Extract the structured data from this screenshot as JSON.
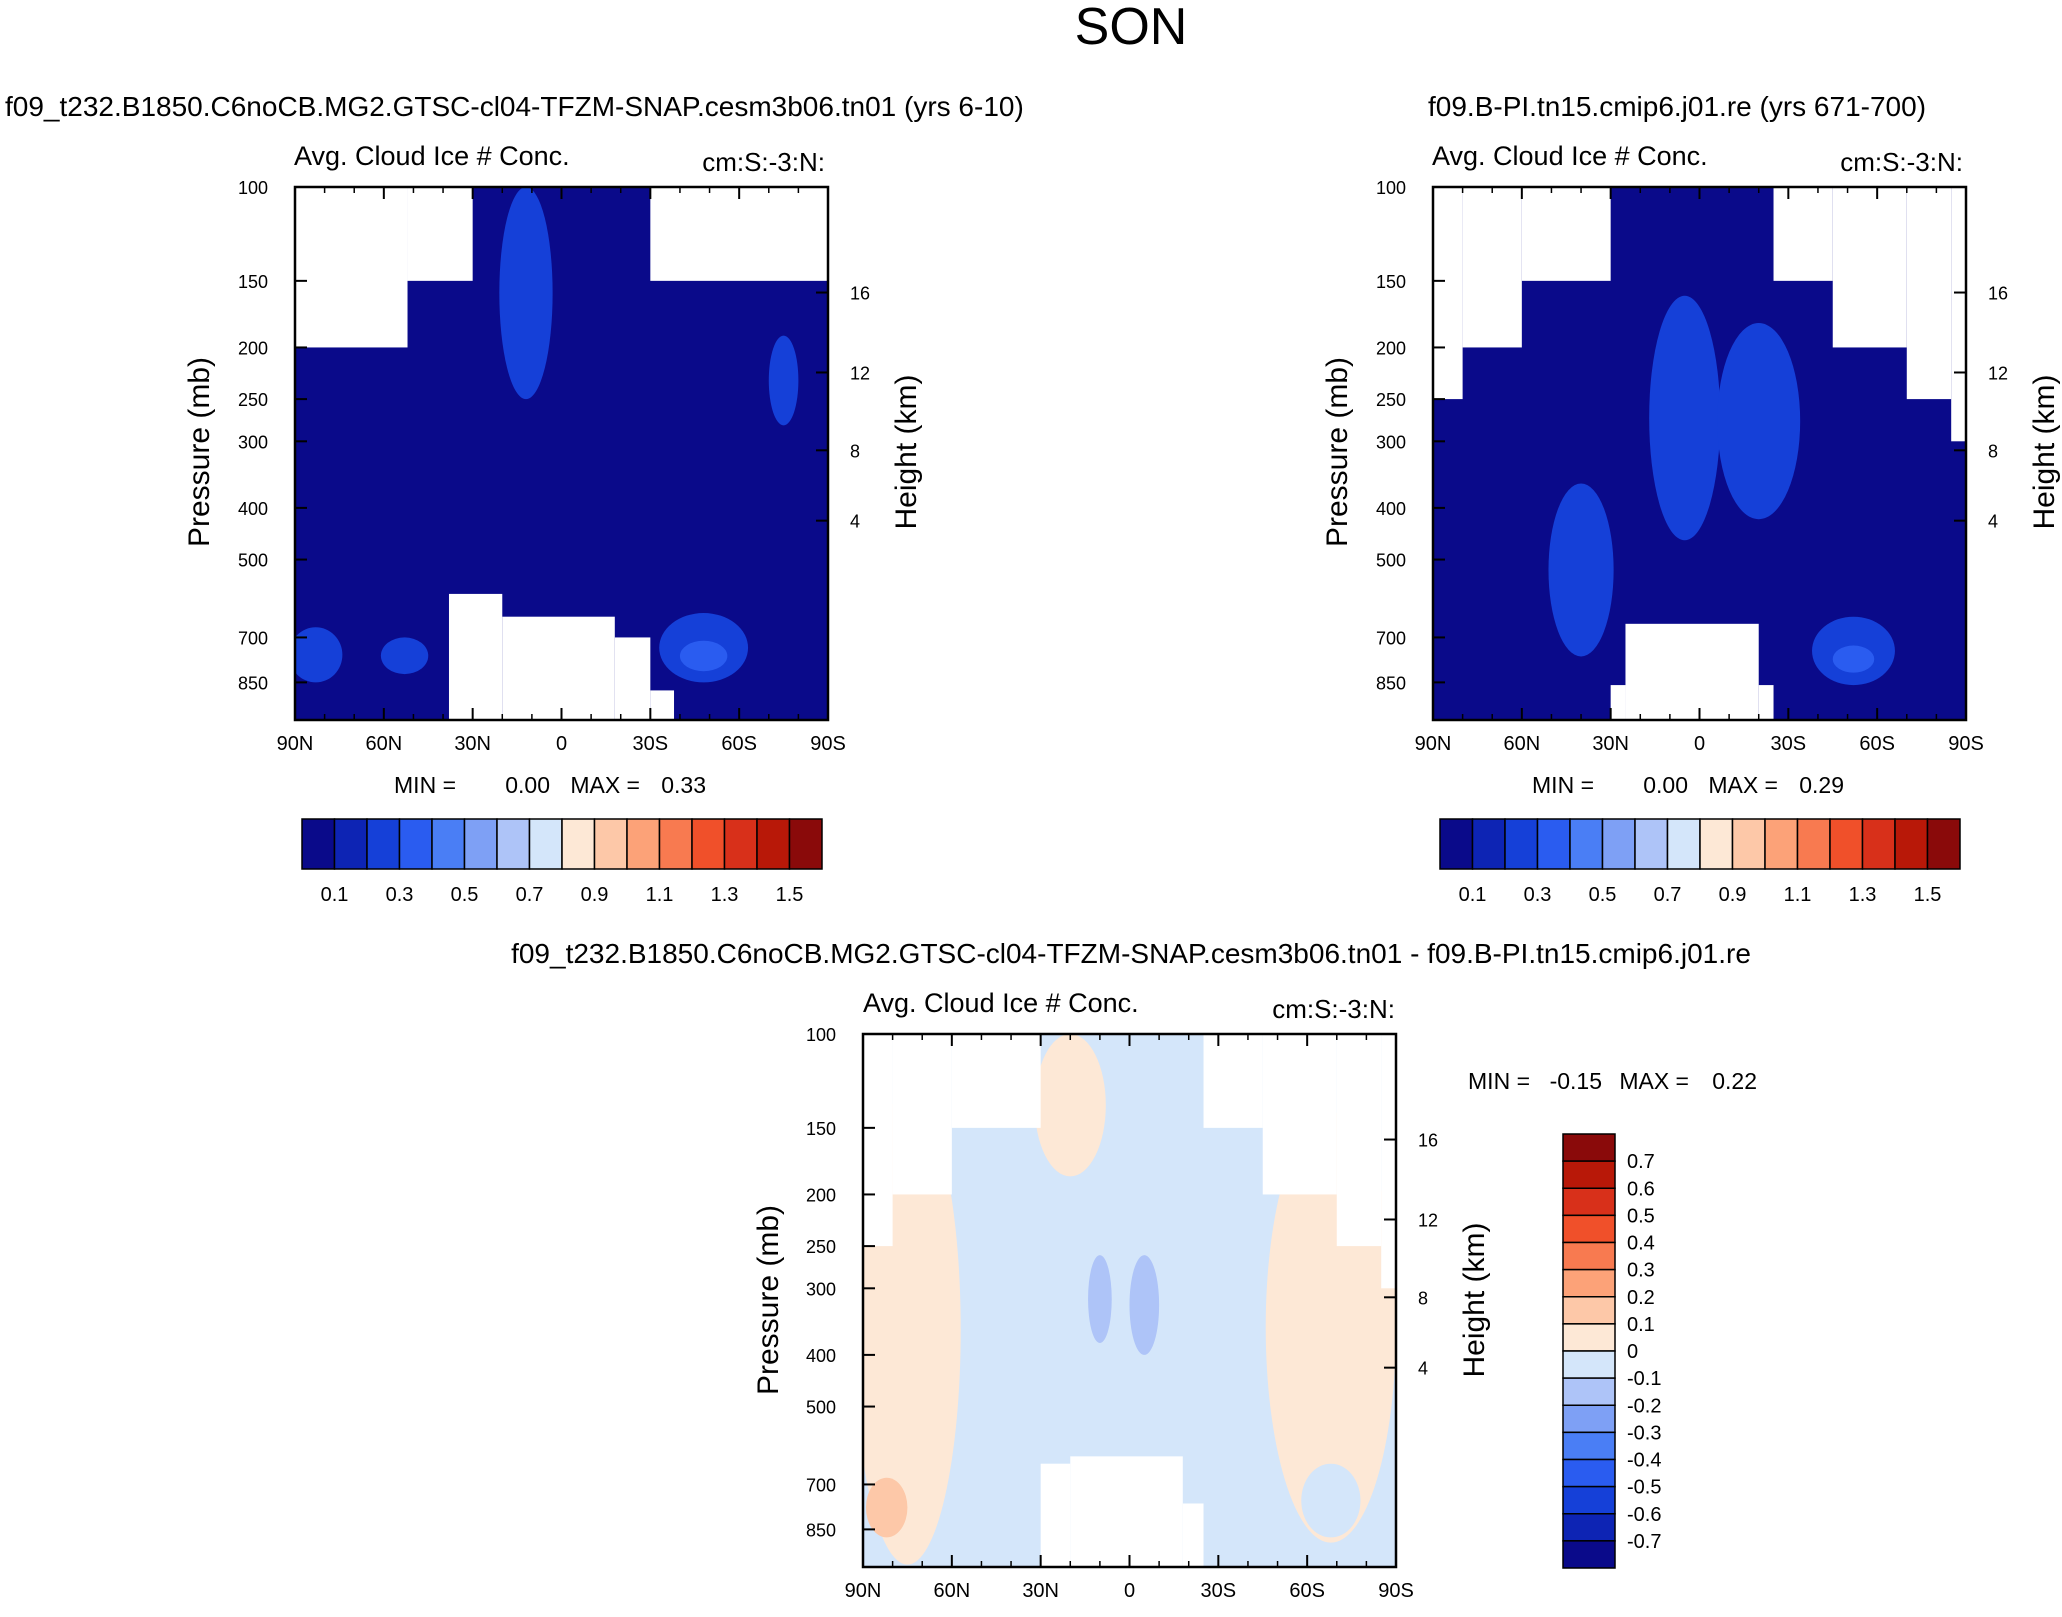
{
  "page_title": "SON",
  "palette_abs": [
    "#0a0a8a",
    "#0d24b4",
    "#1540d8",
    "#2a5cf0",
    "#4a7ef5",
    "#7ea0f5",
    "#aec4f8",
    "#d4e6fa",
    "#fde8d6",
    "#fdc8a8",
    "#fca278",
    "#f87a50",
    "#f0502a",
    "#d8301a",
    "#b81808",
    "#8a0a0a"
  ],
  "palette_diff": [
    "#0a0a8a",
    "#0d24b4",
    "#1540d8",
    "#2a5cf0",
    "#4a7ef5",
    "#7ea0f5",
    "#aec4f8",
    "#d4e6fa",
    "#fde8d6",
    "#fdc8a8",
    "#fca278",
    "#f87a50",
    "#f0502a",
    "#d8301a",
    "#b81808",
    "#8a0a0a"
  ],
  "chart_data": [
    {
      "id": "panel_a",
      "type": "heatmap",
      "title": "f09_t232.B1850.C6noCB.MG2.GTSC-cl04-TFZM-SNAP.cesm3b06.tn01 (yrs 6-10)",
      "subtitle_left": "Avg. Cloud Ice # Conc.",
      "subtitle_right": "cm:S:-3:N:",
      "ylabel": "Pressure (mb)",
      "ylabel_right": "Height (km)",
      "xlim": [
        90,
        -90
      ],
      "ylim_pressure": [
        100,
        1000
      ],
      "x_ticks": [
        90,
        60,
        30,
        0,
        -30,
        -60,
        -90
      ],
      "x_tick_labels": [
        "90N",
        "60N",
        "30N",
        "0",
        "30S",
        "60S",
        "90S"
      ],
      "y_ticks": [
        100,
        150,
        200,
        250,
        300,
        400,
        500,
        700,
        850
      ],
      "y_tick_labels": [
        "100",
        "150",
        "200",
        "250",
        "300",
        "400",
        "500",
        "700",
        "850"
      ],
      "height_ticks": [
        16,
        12,
        8,
        4
      ],
      "height_tick_labels": [
        "16",
        "12",
        "8",
        "4"
      ],
      "stats": {
        "min_label": "MIN =",
        "min": "0.00",
        "max_label": "MAX =",
        "max": "0.33"
      },
      "colorbar": {
        "orientation": "horizontal",
        "levels": [
          0.0,
          0.1,
          0.2,
          0.3,
          0.4,
          0.5,
          0.6,
          0.7,
          0.8,
          0.9,
          1.0,
          1.1,
          1.2,
          1.3,
          1.4,
          1.5
        ],
        "labels": [
          "0.1",
          "0.3",
          "0.5",
          "0.7",
          "0.9",
          "1.1",
          "1.3",
          "1.5"
        ]
      },
      "field": {
        "mask_top": [
          [
            90,
            52,
            200
          ],
          [
            52,
            30,
            150
          ],
          [
            30,
            -30,
            100
          ],
          [
            -30,
            -90,
            150
          ]
        ],
        "mask_bottom": [
          [
            38,
            20,
            580
          ],
          [
            20,
            -18,
            640
          ],
          [
            -18,
            -30,
            700
          ],
          [
            -30,
            -38,
            880
          ]
        ],
        "blobs": [
          {
            "lat": 12,
            "p": 170,
            "rlat": 9,
            "rp": 80,
            "level": 2
          },
          {
            "lat": -48,
            "p": 740,
            "rlat": 15,
            "rp": 110,
            "level": 2
          },
          {
            "lat": -48,
            "p": 760,
            "rlat": 8,
            "rp": 50,
            "level": 3
          },
          {
            "lat": 83,
            "p": 760,
            "rlat": 9,
            "rp": 90,
            "level": 2
          },
          {
            "lat": 53,
            "p": 760,
            "rlat": 8,
            "rp": 60,
            "level": 2
          },
          {
            "lat": -75,
            "p": 235,
            "rlat": 5,
            "rp": 45,
            "level": 2
          }
        ]
      }
    },
    {
      "id": "panel_b",
      "type": "heatmap",
      "title": "f09.B-PI.tn15.cmip6.j01.re (yrs 671-700)",
      "subtitle_left": "Avg. Cloud Ice # Conc.",
      "subtitle_right": "cm:S:-3:N:",
      "ylabel": "Pressure (mb)",
      "ylabel_right": "Height (km)",
      "xlim": [
        90,
        -90
      ],
      "ylim_pressure": [
        100,
        1000
      ],
      "x_ticks": [
        90,
        60,
        30,
        0,
        -30,
        -60,
        -90
      ],
      "x_tick_labels": [
        "90N",
        "60N",
        "30N",
        "0",
        "30S",
        "60S",
        "90S"
      ],
      "y_ticks": [
        100,
        150,
        200,
        250,
        300,
        400,
        500,
        700,
        850
      ],
      "y_tick_labels": [
        "100",
        "150",
        "200",
        "250",
        "300",
        "400",
        "500",
        "700",
        "850"
      ],
      "height_ticks": [
        16,
        12,
        8,
        4
      ],
      "height_tick_labels": [
        "16",
        "12",
        "8",
        "4"
      ],
      "stats": {
        "min_label": "MIN =",
        "min": "0.00",
        "max_label": "MAX =",
        "max": "0.29"
      },
      "colorbar": {
        "orientation": "horizontal",
        "levels": [
          0.0,
          0.1,
          0.2,
          0.3,
          0.4,
          0.5,
          0.6,
          0.7,
          0.8,
          0.9,
          1.0,
          1.1,
          1.2,
          1.3,
          1.4,
          1.5
        ],
        "labels": [
          "0.1",
          "0.3",
          "0.5",
          "0.7",
          "0.9",
          "1.1",
          "1.3",
          "1.5"
        ]
      },
      "field": {
        "mask_top": [
          [
            90,
            80,
            250
          ],
          [
            80,
            60,
            200
          ],
          [
            60,
            30,
            150
          ],
          [
            30,
            -25,
            100
          ],
          [
            -25,
            -45,
            150
          ],
          [
            -45,
            -70,
            200
          ],
          [
            -70,
            -85,
            250
          ],
          [
            -85,
            -90,
            300
          ]
        ],
        "mask_bottom": [
          [
            30,
            25,
            860
          ],
          [
            25,
            -20,
            660
          ],
          [
            -20,
            -25,
            860
          ]
        ],
        "blobs": [
          {
            "lat": 5,
            "p": 310,
            "rlat": 12,
            "rp": 150,
            "level": 2
          },
          {
            "lat": -20,
            "p": 300,
            "rlat": 14,
            "rp": 120,
            "level": 2
          },
          {
            "lat": 40,
            "p": 560,
            "rlat": 11,
            "rp": 200,
            "level": 2
          },
          {
            "lat": -52,
            "p": 750,
            "rlat": 14,
            "rp": 110,
            "level": 2
          },
          {
            "lat": -52,
            "p": 770,
            "rlat": 7,
            "rp": 45,
            "level": 3
          }
        ]
      }
    },
    {
      "id": "panel_c",
      "type": "heatmap",
      "title": "f09_t232.B1850.C6noCB.MG2.GTSC-cl04-TFZM-SNAP.cesm3b06.tn01 - f09.B-PI.tn15.cmip6.j01.re",
      "subtitle_left": "Avg. Cloud Ice # Conc.",
      "subtitle_right": "cm:S:-3:N:",
      "ylabel": "Pressure (mb)",
      "ylabel_right": "Height (km)",
      "xlim": [
        90,
        -90
      ],
      "ylim_pressure": [
        100,
        1000
      ],
      "x_ticks": [
        90,
        60,
        30,
        0,
        -30,
        -60,
        -90
      ],
      "x_tick_labels": [
        "90N",
        "60N",
        "30N",
        "0",
        "30S",
        "60S",
        "90S"
      ],
      "y_ticks": [
        100,
        150,
        200,
        250,
        300,
        400,
        500,
        700,
        850
      ],
      "y_tick_labels": [
        "100",
        "150",
        "200",
        "250",
        "300",
        "400",
        "500",
        "700",
        "850"
      ],
      "height_ticks": [
        16,
        12,
        8,
        4
      ],
      "height_tick_labels": [
        "16",
        "12",
        "8",
        "4"
      ],
      "stats": {
        "min_label": "MIN =",
        "min": "-0.15",
        "max_label": "MAX =",
        "max": "0.22"
      },
      "colorbar": {
        "orientation": "vertical",
        "levels": [
          -0.8,
          -0.7,
          -0.6,
          -0.5,
          -0.4,
          -0.3,
          -0.2,
          -0.1,
          0.0,
          0.1,
          0.2,
          0.3,
          0.4,
          0.5,
          0.6,
          0.7,
          0.8
        ],
        "labels": [
          "0.7",
          "0.6",
          "0.5",
          "0.4",
          "0.3",
          "0.2",
          "0.1",
          "0",
          "-0.1",
          "-0.2",
          "-0.3",
          "-0.4",
          "-0.5",
          "-0.6",
          "-0.7"
        ]
      },
      "field": {
        "background_level": 7,
        "mask_top": [
          [
            90,
            80,
            250
          ],
          [
            80,
            60,
            200
          ],
          [
            60,
            30,
            150
          ],
          [
            30,
            -25,
            100
          ],
          [
            -25,
            -45,
            150
          ],
          [
            -45,
            -70,
            200
          ],
          [
            -70,
            -85,
            250
          ],
          [
            -85,
            -90,
            300
          ]
        ],
        "mask_bottom": [
          [
            30,
            20,
            640
          ],
          [
            20,
            -18,
            620
          ],
          [
            -18,
            -25,
            760
          ]
        ],
        "blobs": [
          {
            "lat": 20,
            "p": 120,
            "rlat": 12,
            "rp": 65,
            "level": 8
          },
          {
            "lat": 75,
            "p": 560,
            "rlat": 18,
            "rp": 430,
            "level": 8
          },
          {
            "lat": -68,
            "p": 520,
            "rlat": 22,
            "rp": 380,
            "level": 8
          },
          {
            "lat": 82,
            "p": 780,
            "rlat": 7,
            "rp": 100,
            "level": 9
          },
          {
            "lat": -68,
            "p": 760,
            "rlat": 10,
            "rp": 120,
            "level": 7
          },
          {
            "lat": 10,
            "p": 320,
            "rlat": 4,
            "rp": 60,
            "level": 6
          },
          {
            "lat": -5,
            "p": 330,
            "rlat": 5,
            "rp": 70,
            "level": 6
          }
        ]
      }
    }
  ]
}
